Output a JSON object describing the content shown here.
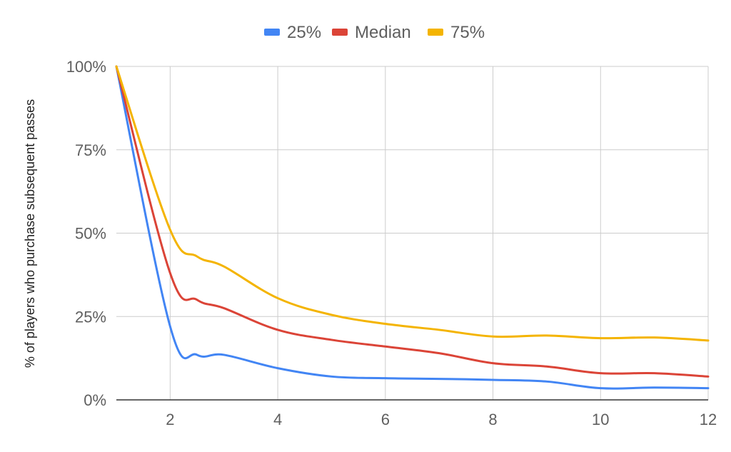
{
  "chart_data": {
    "type": "line",
    "title": "",
    "xlabel": "",
    "ylabel": "% of players who purchase subsequent passes",
    "x": [
      1,
      2,
      2.5,
      3,
      4,
      5,
      6,
      7,
      8,
      9,
      10,
      11,
      12
    ],
    "xlim": [
      1,
      12
    ],
    "ylim": [
      0,
      100
    ],
    "x_ticks": [
      "2",
      "4",
      "6",
      "8",
      "10",
      "12"
    ],
    "y_ticks": [
      "0%",
      "25%",
      "50%",
      "75%",
      "100%"
    ],
    "grid": true,
    "legend_position": "top-center",
    "series": [
      {
        "name": "25%",
        "color": "#4285f4",
        "values": [
          100,
          22,
          13.5,
          13.5,
          9.5,
          7,
          6.5,
          6.3,
          6,
          5.5,
          3.5,
          3.7,
          3.5
        ]
      },
      {
        "name": "Median",
        "color": "#db4437",
        "values": [
          100,
          38,
          30,
          27.5,
          21,
          18,
          16,
          14,
          11,
          10,
          8,
          8,
          7
        ]
      },
      {
        "name": "75%",
        "color": "#f4b400",
        "values": [
          100,
          51,
          43,
          40,
          30.5,
          25.5,
          22.8,
          21,
          19,
          19.3,
          18.5,
          18.7,
          17.8
        ]
      }
    ]
  }
}
